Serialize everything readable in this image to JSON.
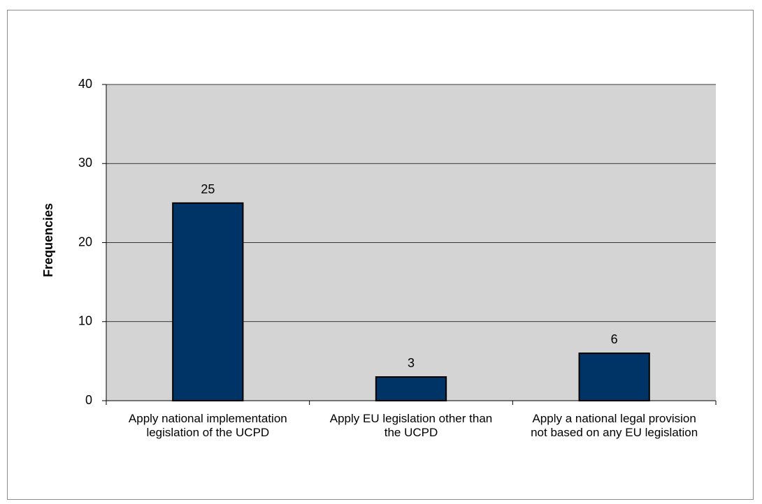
{
  "chart_data": {
    "type": "bar",
    "categories": [
      "Apply national implementation legislation of the UCPD",
      "Apply EU legislation other than the UCPD",
      "Apply a national legal provision not based on any EU legislation"
    ],
    "values": [
      25,
      3,
      6
    ],
    "title": "",
    "xlabel": "",
    "ylabel": "Frequencies",
    "ylim": [
      0,
      40
    ],
    "yticks": [
      0,
      10,
      20,
      30,
      40
    ],
    "grid": true,
    "data_labels": [
      "25",
      "3",
      "6"
    ],
    "colors": {
      "bar": "#003366",
      "plot_background": "#d4d4d4",
      "gridline": "#000000"
    }
  }
}
